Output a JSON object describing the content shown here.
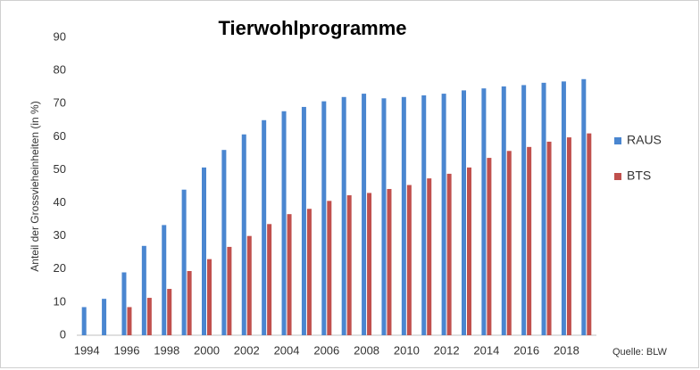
{
  "chart_data": {
    "type": "bar",
    "title": "Tierwohlprogramme",
    "y_label": "Anteil der Grossvieheinheiten (in %)",
    "source": "Quelle: BLW",
    "categories": [
      "1994",
      null,
      "1996",
      null,
      "1998",
      null,
      "2000",
      null,
      "2002",
      null,
      "2004",
      null,
      "2006",
      null,
      "2008",
      null,
      "2010",
      null,
      "2012",
      null,
      "2014",
      null,
      "2016",
      null,
      "2018",
      null
    ],
    "series": [
      {
        "name": "RAUS",
        "color": "#4a86d0",
        "values": [
          8.5,
          11,
          19,
          27,
          33.3,
          44,
          50.7,
          56,
          60.7,
          65,
          67.7,
          69,
          70.7,
          72,
          73,
          71.6,
          72,
          72.5,
          73,
          74,
          74.6,
          75.2,
          75.6,
          76.3,
          76.7,
          77.4
        ]
      },
      {
        "name": "BTS",
        "color": "#c0504d",
        "values": [
          null,
          null,
          8.5,
          11.3,
          14,
          19.4,
          23,
          26.7,
          30,
          33.6,
          36.6,
          38.2,
          40.6,
          42.3,
          43,
          44.2,
          45.4,
          47.4,
          48.8,
          50.7,
          53.6,
          55.7,
          56.9,
          58.5,
          59.8,
          61
        ]
      }
    ],
    "ylim": [
      0,
      90
    ],
    "yticks": [
      0,
      10,
      20,
      30,
      40,
      50,
      60,
      70,
      80,
      90
    ],
    "grid": false,
    "legend": "right"
  }
}
